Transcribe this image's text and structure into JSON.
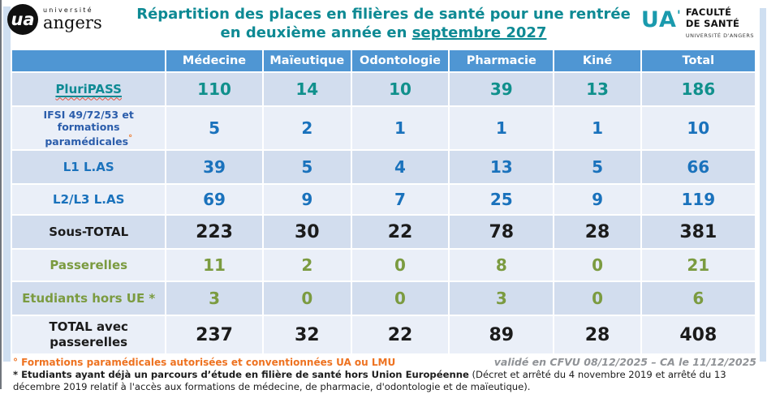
{
  "colors": {
    "header_bg": "#4f96d3",
    "row_dark": "#d2ddee",
    "row_light": "#eaeff8",
    "teal": "#0e8a94",
    "teal_value": "#10908c",
    "blue": "#1a72bc",
    "navy": "#2b5dab",
    "green": "#7b9b40",
    "black": "#1b1b1b",
    "orange": "#ee7220",
    "gray_note": "#8f9296",
    "edge_strip": "#cfdff1"
  },
  "page_header": {
    "logo_left": {
      "mark": "ua",
      "top": "université",
      "bottom": "angers"
    },
    "title_line1": "Répartition des places en filières de santé pour une rentrée",
    "title_line2_prefix": "en deuxième année en ",
    "title_line2_underline": "septembre 2027",
    "logo_right": {
      "mark": "UA",
      "tick": "'",
      "name_line1": "FACULTÉ",
      "name_line2": "DE SANTÉ",
      "subtitle": "UNIVERSITÉ D'ANGERS"
    }
  },
  "table": {
    "columns": [
      "Médecine",
      "Maïeutique",
      "Odontologie",
      "Pharmacie",
      "Kiné",
      "Total"
    ],
    "rows": [
      {
        "label": "PluriPASS",
        "label_color": "teal",
        "value_color": "teal_value",
        "decoration": "underline-wavy",
        "values": [
          "110",
          "14",
          "10",
          "39",
          "13",
          "186"
        ]
      },
      {
        "label": "IFSI 49/72/53 et\nformations paramédicales",
        "label_suffix": "°",
        "label_color": "navy",
        "label_size": "small",
        "value_color": "blue",
        "values": [
          "5",
          "2",
          "1",
          "1",
          "1",
          "10"
        ]
      },
      {
        "label": "L1 L.AS",
        "label_color": "blue",
        "value_color": "blue",
        "values": [
          "39",
          "5",
          "4",
          "13",
          "5",
          "66"
        ]
      },
      {
        "label": "L2/L3 L.AS",
        "label_color": "blue",
        "value_color": "blue",
        "values": [
          "69",
          "9",
          "7",
          "25",
          "9",
          "119"
        ]
      },
      {
        "label": "Sous-TOTAL",
        "label_color": "black",
        "value_color": "black",
        "emphasis": true,
        "values": [
          "223",
          "30",
          "22",
          "78",
          "28",
          "381"
        ]
      },
      {
        "label": "Passerelles",
        "label_color": "green",
        "value_color": "green",
        "values": [
          "11",
          "2",
          "0",
          "8",
          "0",
          "21"
        ]
      },
      {
        "label": "Etudiants hors UE *",
        "label_color": "green",
        "value_color": "green",
        "values": [
          "3",
          "0",
          "0",
          "3",
          "0",
          "6"
        ]
      },
      {
        "label": "TOTAL avec\npasserelles",
        "label_color": "black",
        "value_color": "black",
        "emphasis": true,
        "values": [
          "237",
          "32",
          "22",
          "89",
          "28",
          "408"
        ]
      }
    ]
  },
  "footer": {
    "note_circle": "° Formations paramédicales autorisées et conventionnées UA ou LMU",
    "validation": "validé en CFVU 08/12/2025 – CA le 11/12/2025",
    "note_asterisk_bold": "* Etudiants ayant déjà un parcours d’étude en filière de santé hors Union Européenne",
    "note_asterisk_rest": " (Décret et arrêté du 4 novembre 2019 et arrêté du 13 décembre 2019 relatif à l'accès aux formations de médecine, de pharmacie, d'odontologie et de maïeutique)."
  }
}
